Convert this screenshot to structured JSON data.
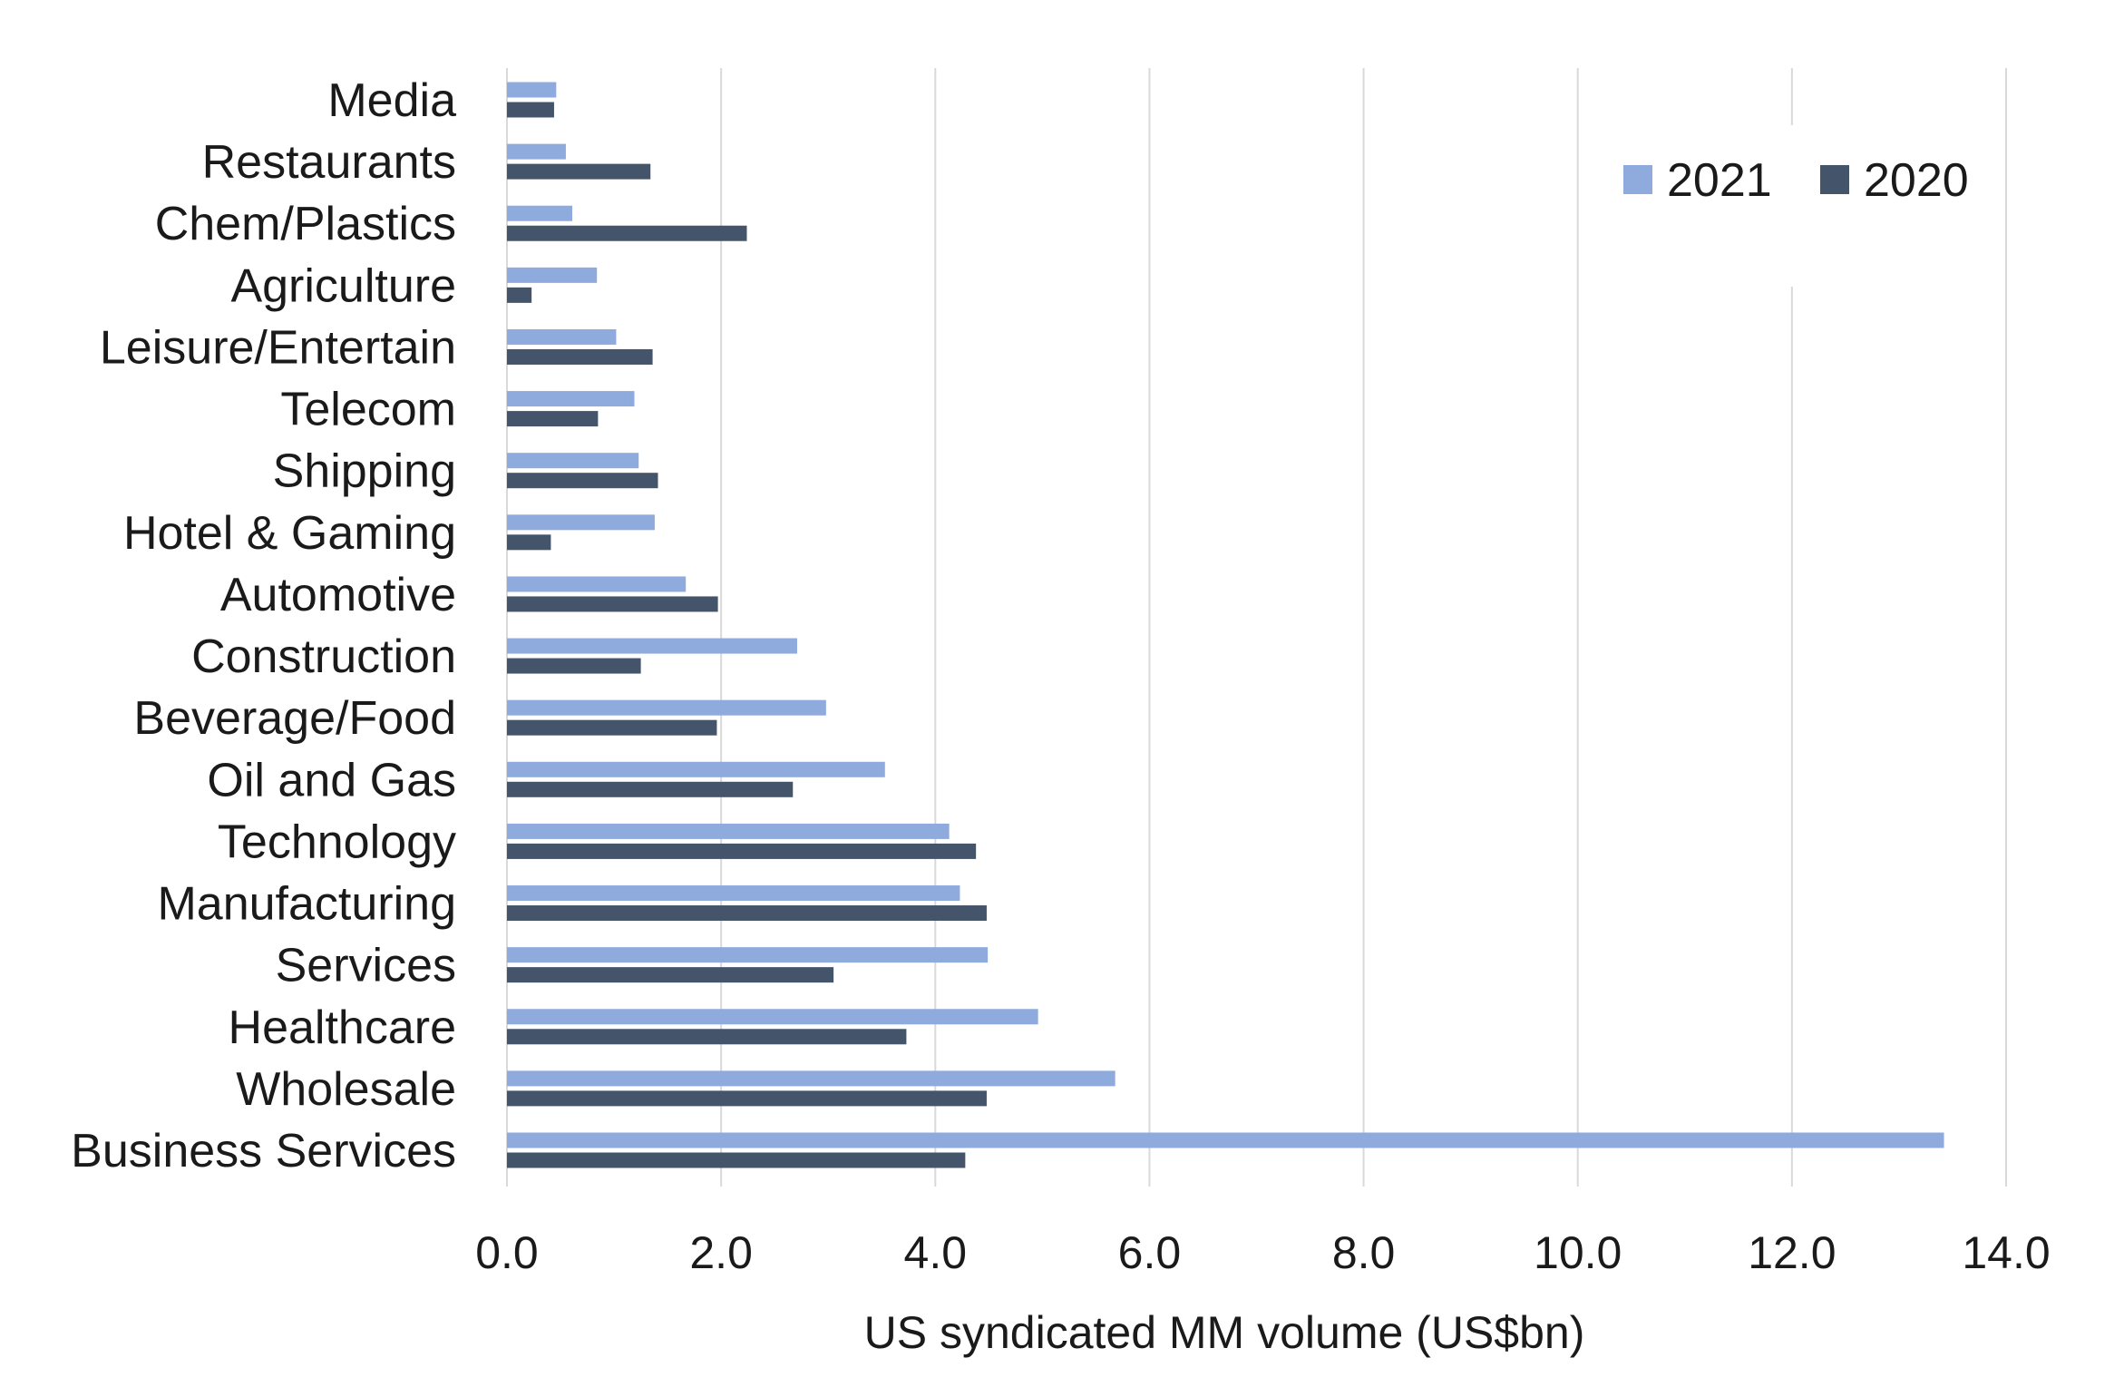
{
  "chart_data": {
    "type": "bar",
    "orientation": "horizontal",
    "categories": [
      "Media",
      "Restaurants",
      "Chem/Plastics",
      "Agriculture",
      "Leisure/Entertain",
      "Telecom",
      "Shipping",
      "Hotel & Gaming",
      "Automotive",
      "Construction",
      "Beverage/Food",
      "Oil and Gas",
      "Technology",
      "Manufacturing",
      "Services",
      "Healthcare",
      "Wholesale",
      "Business Services"
    ],
    "series": [
      {
        "name": "2021",
        "color": "#8faadc",
        "values": [
          0.46,
          0.55,
          0.61,
          0.84,
          1.02,
          1.19,
          1.23,
          1.38,
          1.67,
          2.71,
          2.98,
          3.53,
          4.13,
          4.23,
          4.49,
          4.96,
          5.68,
          13.42
        ]
      },
      {
        "name": "2020",
        "color": "#44546a",
        "values": [
          0.44,
          1.34,
          2.24,
          0.23,
          1.36,
          0.85,
          1.41,
          0.41,
          1.97,
          1.25,
          1.96,
          2.67,
          4.38,
          4.48,
          3.05,
          3.73,
          4.48,
          4.28
        ]
      }
    ],
    "xlabel": "US syndicated MM volume (US$bn)",
    "xlim": [
      0,
      14
    ],
    "xticks": [
      "0.0",
      "2.0",
      "4.0",
      "6.0",
      "8.0",
      "10.0",
      "12.0",
      "14.0"
    ],
    "gridlines": "vertical",
    "legend_position": "top-right",
    "gridline_color": "#d9d9d9"
  }
}
